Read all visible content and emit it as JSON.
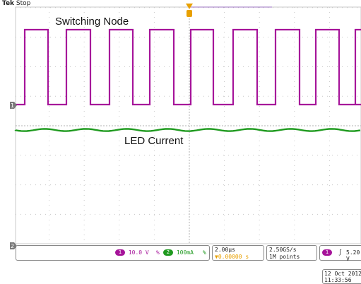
{
  "header": {
    "brand": "Tek",
    "status": "Stop"
  },
  "traces": {
    "switching_label": "Switching Node",
    "current_label": "LED Current"
  },
  "markers": {
    "ch1": "1",
    "ch2": "2",
    "trigger": "T"
  },
  "readouts": {
    "ch1_scale": "10.0 V",
    "ch1_bw": "%",
    "ch2_scale": "100mA",
    "ch2_bw": "%",
    "timebase": "2.00µs",
    "position": "▼0.00000 s",
    "sample_rate": "2.50GS/s",
    "record_length": "1M points",
    "trigger_source": "1",
    "trigger_slope": "∫",
    "trigger_level": "5.20 V"
  },
  "datetime": {
    "date": "12 Oct  2012",
    "time": "11:33:56"
  },
  "colors": {
    "ch1": "#a6149a",
    "ch2": "#1f9a1f",
    "trigger": "#e8a000",
    "grid": "#c8c8c8",
    "marker": "#7a7a7a"
  },
  "icons": [
    "grid-center-axis",
    "trigger-position-marker"
  ]
}
